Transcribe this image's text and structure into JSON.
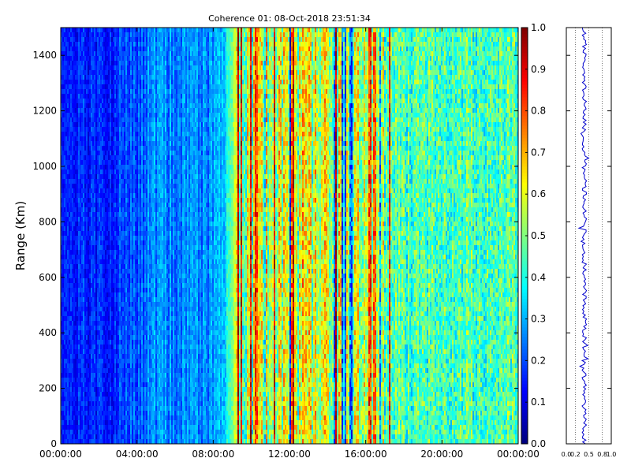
{
  "chart_data": [
    {
      "type": "heatmap",
      "title": "Coherence 01: 08-Oct-2018 23:51:34",
      "xlabel": "",
      "ylabel": "Range (Km)",
      "x_ticks": [
        "00:00:00",
        "04:00:00",
        "08:00:00",
        "12:00:00",
        "16:00:00",
        "20:00:00",
        "00:00:00"
      ],
      "x_range_hours": [
        0,
        24
      ],
      "ylim": [
        0,
        1500
      ],
      "y_ticks": [
        0,
        200,
        400,
        600,
        800,
        1000,
        1200,
        1400
      ],
      "colormap": "jet",
      "value_range": [
        0.0,
        1.0
      ],
      "colorbar_ticks": [
        "0.0",
        "0.1",
        "0.2",
        "0.3",
        "0.4",
        "0.5",
        "0.6",
        "0.7",
        "0.8",
        "0.9",
        "1.0"
      ],
      "time_profile": {
        "hours": [
          0,
          2,
          3.5,
          5,
          7,
          8.5,
          9.2,
          10,
          12,
          14,
          16,
          17.2,
          18,
          20,
          22,
          24
        ],
        "mean_coherence": [
          0.15,
          0.16,
          0.18,
          0.26,
          0.25,
          0.28,
          0.55,
          0.55,
          0.55,
          0.55,
          0.55,
          0.5,
          0.45,
          0.45,
          0.45,
          0.45
        ]
      }
    },
    {
      "type": "line",
      "title": "",
      "xlabel": "",
      "ylabel": "",
      "xlim": [
        0.0,
        1.0
      ],
      "x_ticks": [
        "0.0",
        "0.2",
        "0.5",
        "0.8",
        "1.0"
      ],
      "ylim": [
        0,
        1500
      ],
      "grid": "vertical dotted",
      "series_color": "#0000cc",
      "mean_value": 0.4,
      "spread": 0.05
    }
  ],
  "colors": {
    "line": "#0000cc",
    "axes": "#000000",
    "grid": "#555555"
  }
}
